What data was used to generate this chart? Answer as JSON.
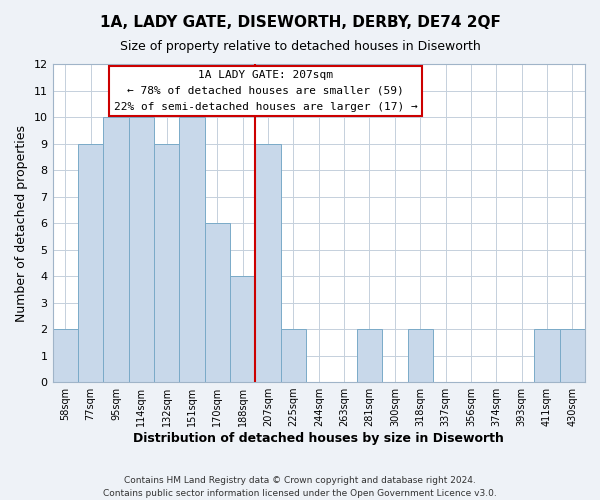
{
  "title": "1A, LADY GATE, DISEWORTH, DERBY, DE74 2QF",
  "subtitle": "Size of property relative to detached houses in Diseworth",
  "xlabel": "Distribution of detached houses by size in Diseworth",
  "ylabel": "Number of detached properties",
  "bin_labels": [
    "58sqm",
    "77sqm",
    "95sqm",
    "114sqm",
    "132sqm",
    "151sqm",
    "170sqm",
    "188sqm",
    "207sqm",
    "225sqm",
    "244sqm",
    "263sqm",
    "281sqm",
    "300sqm",
    "318sqm",
    "337sqm",
    "356sqm",
    "374sqm",
    "393sqm",
    "411sqm",
    "430sqm"
  ],
  "bar_heights": [
    2,
    9,
    10,
    10,
    9,
    10,
    6,
    4,
    9,
    2,
    0,
    0,
    2,
    0,
    2,
    0,
    0,
    0,
    0,
    2,
    2
  ],
  "bar_color": "#c8d8ea",
  "bar_edge_color": "#7aaac8",
  "highlight_index": 8,
  "highlight_line_color": "#cc0000",
  "ylim": [
    0,
    12
  ],
  "yticks": [
    0,
    1,
    2,
    3,
    4,
    5,
    6,
    7,
    8,
    9,
    10,
    11,
    12
  ],
  "annotation_title": "1A LADY GATE: 207sqm",
  "annotation_line1": "← 78% of detached houses are smaller (59)",
  "annotation_line2": "22% of semi-detached houses are larger (17) →",
  "annotation_box_color": "#ffffff",
  "annotation_border_color": "#cc0000",
  "footer_line1": "Contains HM Land Registry data © Crown copyright and database right 2024.",
  "footer_line2": "Contains public sector information licensed under the Open Government Licence v3.0.",
  "background_color": "#eef2f7",
  "plot_background_color": "#ffffff",
  "grid_color": "#c5d0dc"
}
